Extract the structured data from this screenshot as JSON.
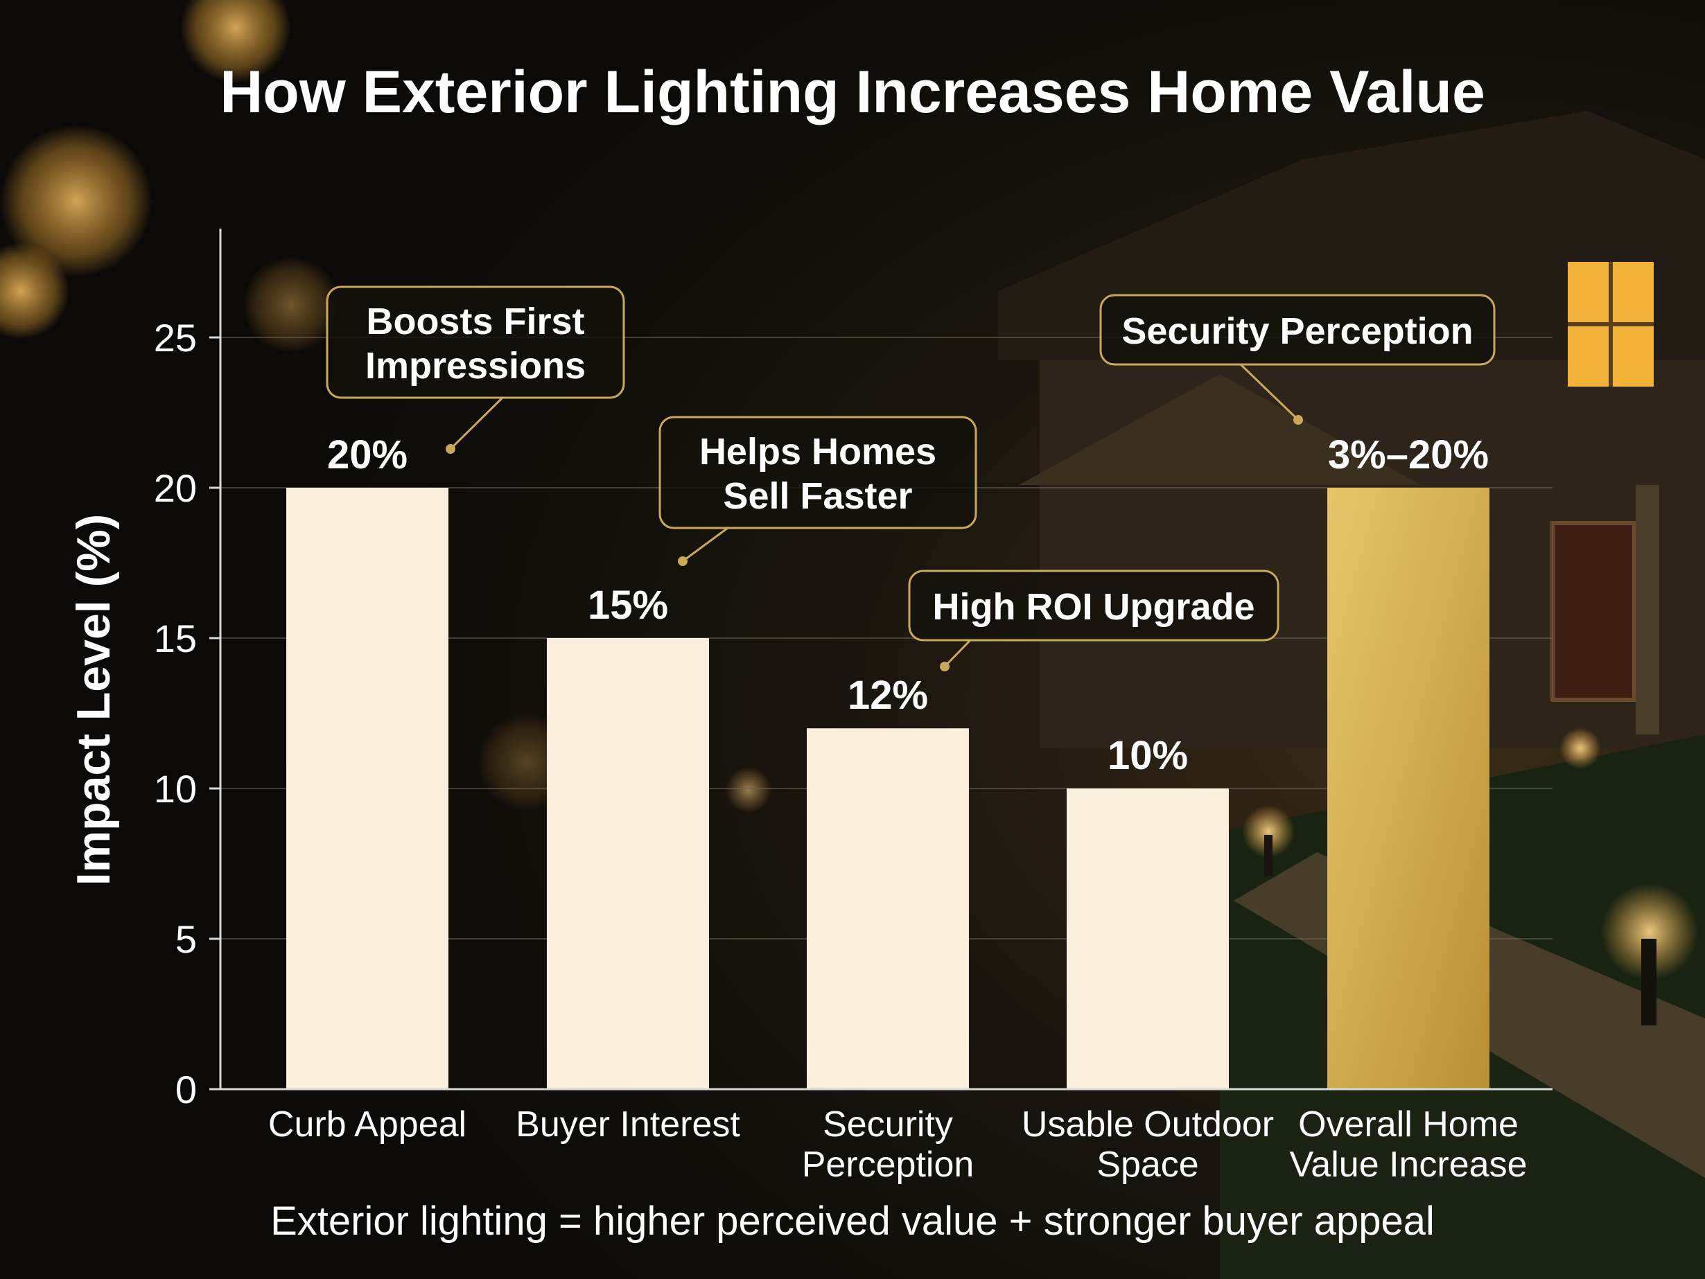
{
  "colors": {
    "background": "#0b0a08",
    "bar": "#f8f0dc",
    "highlight_bar": "#d2aa4a",
    "callout_border": "#c9a85a",
    "callout_fill": "#14110b",
    "text": "#ffffff",
    "axis": "#d8d8d8",
    "grid": "#6b665a",
    "window_glow": "#f3b23a"
  },
  "chart_data": {
    "type": "bar",
    "title": "How Exterior Lighting Increases Home Value",
    "ylabel": "Impact Level (%)",
    "xlabel": "",
    "ylim": [
      0,
      28
    ],
    "yticks": [
      0,
      5,
      10,
      15,
      20,
      25
    ],
    "grid": true,
    "categories": [
      [
        "Curb Appeal"
      ],
      [
        "Buyer Interest"
      ],
      [
        "Security",
        "Perception"
      ],
      [
        "Usable Outdoor",
        "Space"
      ],
      [
        "Overall Home",
        "Value Increase"
      ]
    ],
    "values": [
      20,
      15,
      12,
      10,
      20
    ],
    "value_labels": [
      "20%",
      "15%",
      "12%",
      "10%",
      "3%–20%"
    ],
    "highlight_index": 4,
    "annotations": [
      {
        "lines": [
          "Boosts First",
          "Impressions"
        ],
        "bar": 0
      },
      {
        "lines": [
          "Helps Homes",
          "Sell Faster"
        ],
        "bar": 1
      },
      {
        "lines": [
          "High ROI Upgrade"
        ],
        "bar": 2
      },
      {
        "lines": [
          "Security Perception"
        ],
        "bar": 4
      }
    ],
    "footer": "Exterior lighting = higher perceived value + stronger buyer appeal"
  }
}
